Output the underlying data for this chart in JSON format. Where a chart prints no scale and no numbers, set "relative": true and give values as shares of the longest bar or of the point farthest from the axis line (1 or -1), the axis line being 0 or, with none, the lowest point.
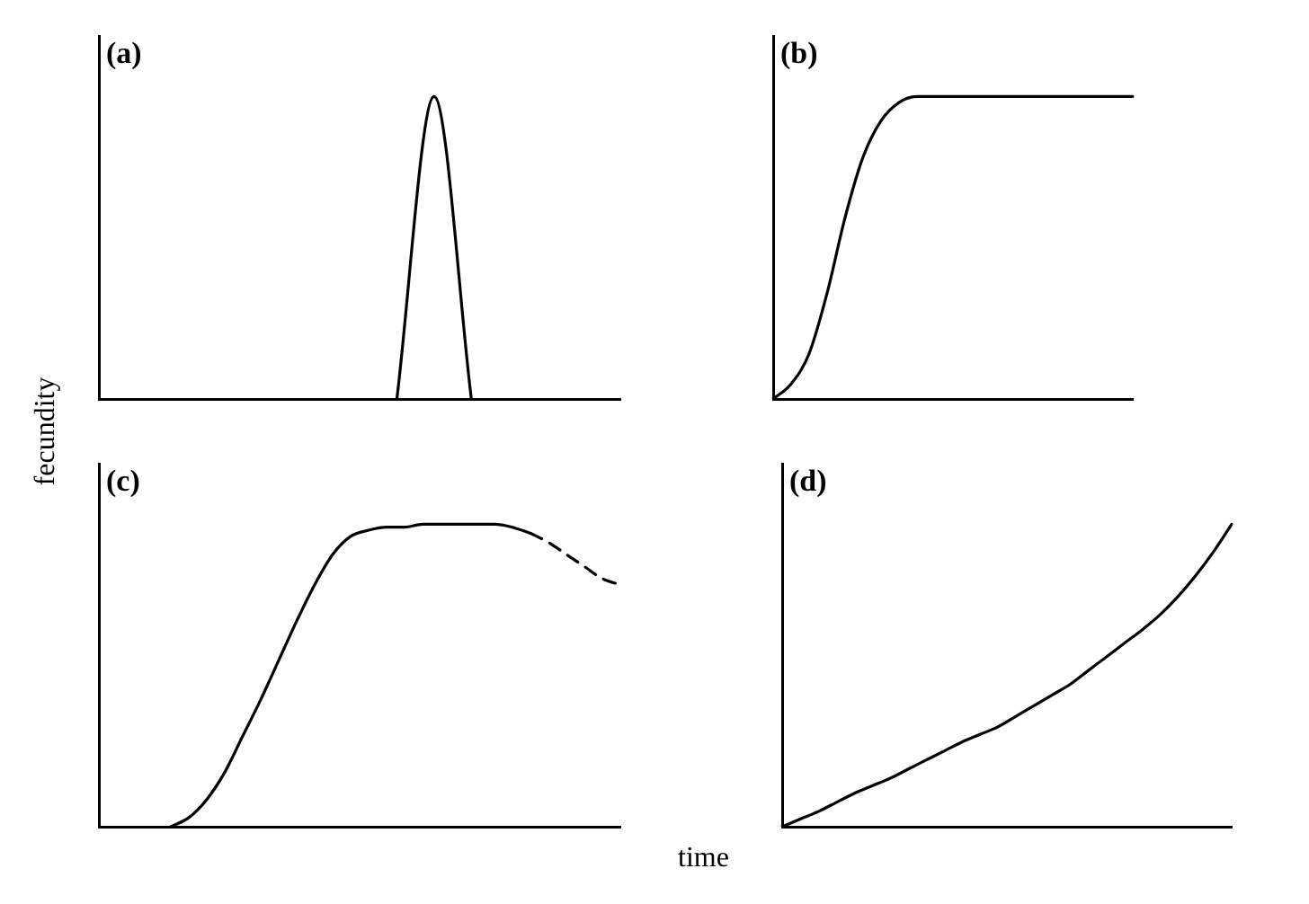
{
  "chart_data": [
    {
      "type": "line",
      "title": "(a)",
      "relative": true,
      "marker": "none",
      "categories": [
        null,
        null,
        null,
        null,
        null,
        null,
        null,
        null,
        null,
        null,
        null,
        null,
        null,
        null,
        null
      ],
      "series": [
        {
          "color": "#000000",
          "line_style": "solid",
          "values": [
            null,
            null,
            null,
            null,
            null,
            null,
            null,
            null,
            0,
            1,
            0,
            null,
            null,
            null,
            null
          ]
        }
      ]
    },
    {
      "type": "line",
      "title": "(b)",
      "relative": true,
      "marker": "none",
      "categories": [
        null,
        null,
        null,
        null,
        null,
        null,
        null,
        null,
        null,
        null,
        null,
        null,
        null,
        null,
        null,
        null,
        null,
        null,
        null,
        null,
        null
      ],
      "series": [
        {
          "color": "#000000",
          "line_style": "solid",
          "values": [
            0,
            0.05,
            0.15,
            0.35,
            0.6,
            0.8,
            0.92,
            0.98,
            1,
            1,
            1,
            1,
            1,
            1,
            1,
            1,
            1,
            1,
            1,
            1,
            1
          ]
        }
      ]
    },
    {
      "type": "line",
      "title": "(c)",
      "relative": true,
      "marker": "none",
      "xlabel": "time",
      "ylabel": "fecundity",
      "categories": [
        null,
        null,
        null,
        null,
        null,
        null,
        null,
        null,
        null,
        null,
        null,
        null,
        null,
        null,
        null,
        null,
        null,
        null,
        null,
        null,
        null,
        null,
        null,
        null,
        null,
        null,
        null,
        null,
        null,
        null
      ],
      "series": [
        {
          "color": "#000000",
          "line_style": "solid",
          "values": [
            null,
            null,
            null,
            null,
            0,
            0.03,
            0.09,
            0.18,
            0.3,
            0.42,
            0.55,
            0.68,
            0.8,
            0.9,
            0.96,
            0.98,
            0.99,
            0.99,
            1,
            1,
            1,
            1,
            1,
            0.99,
            0.97,
            null,
            null,
            null,
            null,
            null
          ]
        },
        {
          "color": "#000000",
          "line_style": "dashed",
          "values": [
            null,
            null,
            null,
            null,
            null,
            null,
            null,
            null,
            null,
            null,
            null,
            null,
            null,
            null,
            null,
            null,
            null,
            null,
            null,
            null,
            null,
            null,
            null,
            null,
            0.97,
            0.94,
            0.9,
            0.86,
            0.82,
            0.8
          ]
        }
      ]
    },
    {
      "type": "line",
      "title": "(d)",
      "relative": true,
      "marker": "none",
      "categories": [
        null,
        null,
        null,
        null,
        null,
        null,
        null,
        null,
        null,
        null,
        null,
        null,
        null,
        null,
        null,
        null,
        null,
        null,
        null,
        null,
        null,
        null,
        null,
        null,
        null,
        null
      ],
      "series": [
        {
          "color": "#000000",
          "line_style": "solid",
          "values": [
            0,
            0.025,
            0.05,
            0.08,
            0.11,
            0.135,
            0.16,
            0.19,
            0.22,
            0.25,
            0.28,
            0.305,
            0.33,
            0.365,
            0.4,
            0.435,
            0.47,
            0.515,
            0.56,
            0.605,
            0.65,
            0.7,
            0.76,
            0.83,
            0.91,
            1
          ]
        }
      ]
    }
  ]
}
